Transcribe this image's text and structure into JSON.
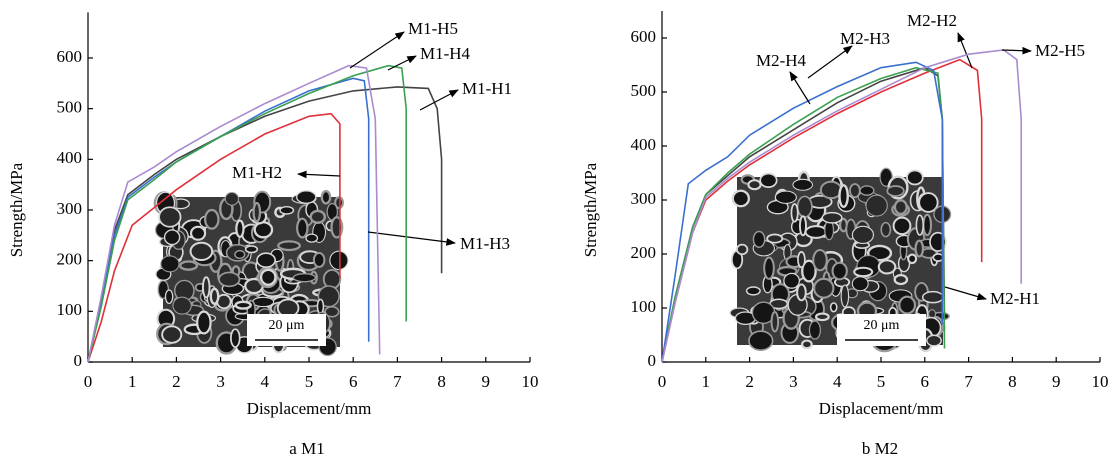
{
  "chart_data": [
    {
      "type": "line",
      "caption": "a M1",
      "xlabel": "Displacement/mm",
      "ylabel": "Strength/MPa",
      "xlim": [
        0,
        10
      ],
      "ylim": [
        0,
        690
      ],
      "xticks": [
        0,
        1,
        2,
        3,
        4,
        5,
        6,
        7,
        8,
        9,
        10
      ],
      "yticks": [
        0,
        100,
        200,
        300,
        400,
        500,
        600
      ],
      "inset_scale_label": "20 μm",
      "series": [
        {
          "name": "M1-H1",
          "color": "#444444",
          "x": [
            0,
            0.3,
            0.6,
            0.9,
            1.5,
            2,
            3,
            4,
            5,
            6,
            7,
            7.7,
            7.9,
            8,
            8
          ],
          "values": [
            0,
            120,
            260,
            330,
            370,
            400,
            445,
            485,
            515,
            535,
            543,
            540,
            500,
            400,
            175
          ]
        },
        {
          "name": "M1-H2",
          "color": "#e0303a",
          "x": [
            0,
            0.3,
            0.6,
            1,
            1.5,
            2,
            3,
            4,
            5,
            5.5,
            5.7,
            5.7
          ],
          "values": [
            0,
            80,
            180,
            270,
            305,
            340,
            400,
            450,
            485,
            490,
            470,
            165
          ]
        },
        {
          "name": "M1-H3",
          "color": "#3a6fd0",
          "x": [
            0,
            0.3,
            0.6,
            0.9,
            1.5,
            2,
            3,
            4,
            5,
            6,
            6.25,
            6.35,
            6.35
          ],
          "values": [
            0,
            120,
            250,
            325,
            365,
            395,
            445,
            495,
            535,
            560,
            555,
            480,
            40
          ]
        },
        {
          "name": "M1-H4",
          "color": "#3aa050",
          "x": [
            0,
            0.3,
            0.6,
            0.9,
            1.5,
            2,
            3,
            4,
            5,
            6,
            6.8,
            7.1,
            7.2,
            7.2
          ],
          "values": [
            0,
            110,
            240,
            320,
            360,
            395,
            445,
            490,
            530,
            565,
            585,
            580,
            500,
            80
          ]
        },
        {
          "name": "M1-H5",
          "color": "#a98bd0",
          "x": [
            0,
            0.3,
            0.6,
            0.9,
            1.5,
            2,
            3,
            4,
            5,
            5.9,
            6.3,
            6.5,
            6.6
          ],
          "values": [
            0,
            130,
            270,
            355,
            385,
            415,
            465,
            510,
            550,
            585,
            580,
            480,
            15
          ]
        }
      ]
    },
    {
      "type": "line",
      "caption": "b M2",
      "xlabel": "Displacement/mm",
      "ylabel": "Strength/MPa",
      "xlim": [
        0,
        10
      ],
      "ylim": [
        0,
        650
      ],
      "xticks": [
        0,
        1,
        2,
        3,
        4,
        5,
        6,
        7,
        8,
        9,
        10
      ],
      "yticks": [
        0,
        100,
        200,
        300,
        400,
        500,
        600
      ],
      "inset_scale_label": "20 μm",
      "series": [
        {
          "name": "M2-H1",
          "color": "#444444",
          "x": [
            0,
            0.3,
            0.7,
            1,
            1.5,
            2,
            3,
            4,
            5,
            6,
            6.3,
            6.4,
            6.45
          ],
          "values": [
            0,
            120,
            250,
            310,
            345,
            380,
            430,
            480,
            520,
            545,
            530,
            450,
            80
          ]
        },
        {
          "name": "M2-H2",
          "color": "#e0303a",
          "x": [
            0,
            0.3,
            0.7,
            1,
            1.5,
            2,
            3,
            4,
            5,
            6,
            6.8,
            7.2,
            7.3,
            7.3
          ],
          "values": [
            0,
            110,
            240,
            300,
            335,
            365,
            415,
            460,
            500,
            535,
            560,
            540,
            450,
            185
          ]
        },
        {
          "name": "M2-H3",
          "color": "#3aa050",
          "x": [
            0,
            0.3,
            0.7,
            1,
            1.5,
            2,
            3,
            4,
            5,
            5.8,
            6.3,
            6.4,
            6.45
          ],
          "values": [
            0,
            120,
            250,
            310,
            350,
            385,
            440,
            490,
            525,
            545,
            535,
            450,
            25
          ]
        },
        {
          "name": "M2-H4",
          "color": "#3a6fd0",
          "x": [
            0,
            0.3,
            0.6,
            1,
            1.5,
            2,
            3,
            4,
            5,
            5.8,
            6.2,
            6.4,
            6.4
          ],
          "values": [
            0,
            160,
            330,
            355,
            380,
            420,
            470,
            510,
            545,
            555,
            540,
            450,
            70
          ]
        },
        {
          "name": "M2-H5",
          "color": "#a98bd0",
          "x": [
            0,
            0.3,
            0.7,
            1,
            1.5,
            2,
            3,
            4,
            5,
            6,
            7,
            7.8,
            8.1,
            8.2,
            8.2
          ],
          "values": [
            0,
            110,
            240,
            305,
            340,
            370,
            420,
            465,
            505,
            545,
            570,
            578,
            560,
            450,
            145
          ]
        }
      ]
    }
  ]
}
